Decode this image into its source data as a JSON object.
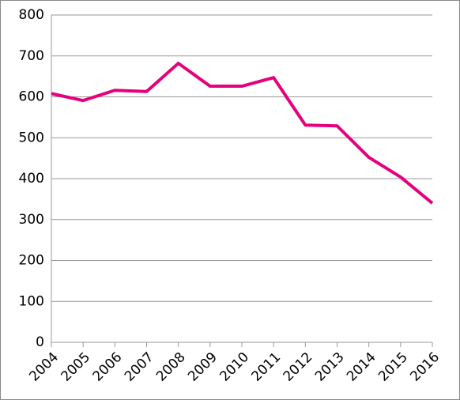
{
  "chart_data": {
    "type": "line",
    "categories": [
      "2004",
      "2005",
      "2006",
      "2007",
      "2008",
      "2009",
      "2010",
      "2011",
      "2012",
      "2013",
      "2014",
      "2015",
      "2016"
    ],
    "series": [
      {
        "color": "#e5007d",
        "values": [
          608,
          591,
          616,
          613,
          682,
          626,
          626,
          647,
          531,
          529,
          452,
          404,
          340
        ]
      }
    ],
    "ylim": [
      0,
      800
    ],
    "yticks": [
      0,
      100,
      200,
      300,
      400,
      500,
      600,
      700,
      800
    ],
    "grid": true
  }
}
